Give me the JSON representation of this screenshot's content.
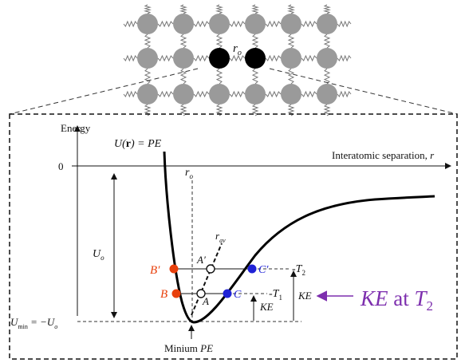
{
  "lattice": {
    "bond_label": "r",
    "bond_label_sub": "o"
  },
  "axes": {
    "y_label": "Energy",
    "x_label": "Interatomic separation, ",
    "x_label_var": "r",
    "origin_label": "0"
  },
  "curve_label": {
    "u": "U(",
    "r": "r",
    "rest": ") = PE"
  },
  "annotations": {
    "ro": {
      "main": "r",
      "sub": "o"
    },
    "rav": {
      "main": "r",
      "sub": "av"
    },
    "uo": {
      "main": "U",
      "sub": "o"
    },
    "umin": {
      "left": "U",
      "left_sub": "min",
      "mid": " = −U",
      "mid_sub": "o"
    },
    "T2": {
      "main": "T",
      "sub": "2"
    },
    "T1": {
      "main": "T",
      "sub": "1"
    },
    "KE_small": "KE",
    "KE_right": "KE",
    "minimum": {
      "text": "Minium ",
      "pe": "PE"
    },
    "ke_at_t2": {
      "ke": "KE",
      "at": " at ",
      "t": "T",
      "sub": "2"
    }
  },
  "points": {
    "B_prime": "B′",
    "A_prime": "A′",
    "C_prime": "C′",
    "B": "B",
    "A": "A",
    "C": "C"
  },
  "colors": {
    "point_red": "#e8400c",
    "point_blue": "#1f22d6",
    "atom_gray": "#9a9a9a",
    "atom_black": "#000000",
    "purple": "#7d2fae"
  }
}
